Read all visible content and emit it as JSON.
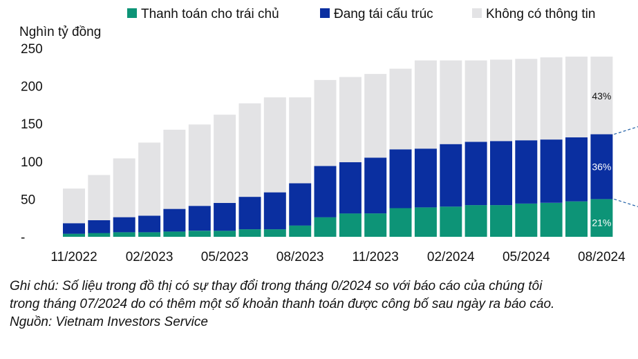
{
  "chart_data": {
    "type": "bar",
    "stacked": true,
    "ylabel": "Nghìn tỷ đồng",
    "ylim": [
      0,
      250
    ],
    "yticks": [
      "-",
      "50",
      "100",
      "150",
      "200",
      "250"
    ],
    "xtick_labels": [
      "11/2022",
      "02/2023",
      "05/2023",
      "08/2023",
      "11/2023",
      "02/2024",
      "05/2024",
      "08/2024"
    ],
    "categories": [
      "11/2022",
      "12/2022",
      "01/2023",
      "02/2023",
      "03/2023",
      "04/2023",
      "05/2023",
      "06/2023",
      "07/2023",
      "08/2023",
      "09/2023",
      "10/2023",
      "11/2023",
      "12/2023",
      "01/2024",
      "02/2024",
      "03/2024",
      "04/2024",
      "05/2024",
      "06/2024",
      "07/2024",
      "08/2024"
    ],
    "series": [
      {
        "name": "Thanh toán cho trái chủ",
        "color": "#0d9477",
        "values": [
          4,
          5,
          6,
          6,
          7,
          8,
          8,
          10,
          10,
          15,
          26,
          31,
          31,
          38,
          39,
          40,
          42,
          42,
          44,
          45,
          47,
          50
        ]
      },
      {
        "name": "Đang tái cấu trúc",
        "color": "#0a2fa0",
        "values": [
          14,
          17,
          20,
          22,
          30,
          33,
          37,
          43,
          49,
          56,
          68,
          68,
          74,
          78,
          78,
          83,
          84,
          85,
          84,
          84,
          85,
          86
        ]
      },
      {
        "name": "Không có thông tin",
        "color": "#e3e3e5",
        "values": [
          46,
          60,
          78,
          97,
          105,
          108,
          117,
          124,
          126,
          114,
          114,
          113,
          111,
          107,
          117,
          111,
          108,
          108,
          108,
          109,
          107,
          103
        ]
      }
    ],
    "annotations": [
      {
        "series": 0,
        "bar": 21,
        "text": "21%"
      },
      {
        "series": 1,
        "bar": 21,
        "text": "36%"
      },
      {
        "series": 2,
        "bar": 21,
        "text": "43%"
      }
    ],
    "grid": false,
    "legend_position": "top"
  },
  "note": {
    "line1": "Ghi chú: Số liệu trong đồ thị có sự thay đổi trong tháng 0/2024 so với báo cáo của chúng tôi",
    "line2": "trong tháng 07/2024 do có thêm một số khoản thanh toán được công bố sau ngày ra báo cáo.",
    "source": "Nguồn: Vietnam Investors Service"
  }
}
